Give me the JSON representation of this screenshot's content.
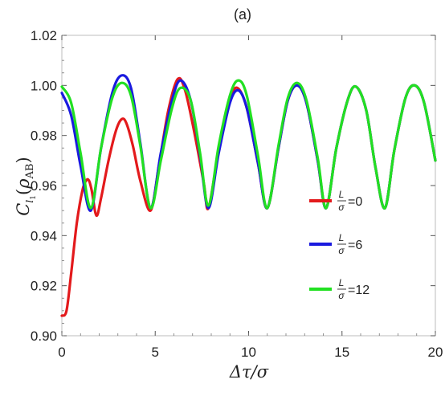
{
  "chart_data": {
    "type": "line",
    "title": "(a)",
    "xlabel": "Δτ/σ",
    "ylabel": "C_l1(ρ_AB)",
    "xlim": [
      0,
      20
    ],
    "ylim": [
      0.9,
      1.02
    ],
    "x_ticks": [
      "0",
      "5",
      "10",
      "15",
      "20"
    ],
    "y_ticks": [
      "0.90",
      "0.92",
      "0.94",
      "0.96",
      "0.98",
      "1.00",
      "1.02"
    ],
    "grid": false,
    "legend_position": "center-right",
    "series": [
      {
        "name_top": "L",
        "name_bottom": "σ",
        "name_value": "=0",
        "color": "#e31a1c",
        "points": [
          [
            0,
            0.908
          ],
          [
            0.25,
            0.91
          ],
          [
            0.5,
            0.925
          ],
          [
            0.8,
            0.945
          ],
          [
            1.1,
            0.958
          ],
          [
            1.3,
            0.962
          ],
          [
            1.45,
            0.962
          ],
          [
            1.6,
            0.958
          ],
          [
            1.85,
            0.948
          ],
          [
            2.1,
            0.955
          ],
          [
            2.5,
            0.97
          ],
          [
            2.9,
            0.982
          ],
          [
            3.2,
            0.9865
          ],
          [
            3.45,
            0.985
          ],
          [
            3.8,
            0.976
          ],
          [
            4.2,
            0.962
          ],
          [
            4.75,
            0.95
          ],
          [
            5.2,
            0.968
          ],
          [
            5.7,
            0.99
          ],
          [
            6.2,
            1.0025
          ],
          [
            6.6,
            0.998
          ],
          [
            7.1,
            0.981
          ],
          [
            7.6,
            0.961
          ],
          [
            7.85,
            0.951
          ],
          [
            8.4,
            0.974
          ],
          [
            9.0,
            0.994
          ],
          [
            9.4,
            0.999
          ],
          [
            9.9,
            0.991
          ],
          [
            10.5,
            0.969
          ],
          [
            11.0,
            0.951
          ],
          [
            11.6,
            0.975
          ],
          [
            12.1,
            0.994
          ],
          [
            12.6,
            1.0
          ],
          [
            13.1,
            0.993
          ],
          [
            13.7,
            0.97
          ],
          [
            14.15,
            0.951
          ],
          [
            14.7,
            0.975
          ],
          [
            15.3,
            0.994
          ],
          [
            15.75,
            0.9995
          ],
          [
            16.3,
            0.99
          ],
          [
            16.8,
            0.967
          ],
          [
            17.3,
            0.951
          ],
          [
            17.8,
            0.974
          ],
          [
            18.4,
            0.995
          ],
          [
            18.9,
            1.0
          ],
          [
            19.4,
            0.993
          ],
          [
            20.0,
            0.97
          ]
        ]
      },
      {
        "name_top": "L",
        "name_bottom": "σ",
        "name_value": "=6",
        "color": "#1a1adf",
        "points": [
          [
            0,
            0.997
          ],
          [
            0.5,
            0.988
          ],
          [
            1.0,
            0.968
          ],
          [
            1.55,
            0.95
          ],
          [
            2.1,
            0.975
          ],
          [
            2.7,
            0.997
          ],
          [
            3.2,
            1.004
          ],
          [
            3.7,
            0.999
          ],
          [
            4.2,
            0.977
          ],
          [
            4.75,
            0.951
          ],
          [
            5.3,
            0.973
          ],
          [
            5.9,
            0.994
          ],
          [
            6.35,
            1.002
          ],
          [
            6.9,
            0.994
          ],
          [
            7.4,
            0.972
          ],
          [
            7.85,
            0.951
          ],
          [
            8.4,
            0.973
          ],
          [
            9.0,
            0.993
          ],
          [
            9.45,
            0.998
          ],
          [
            9.9,
            0.991
          ],
          [
            10.5,
            0.969
          ],
          [
            11.0,
            0.951
          ],
          [
            11.6,
            0.975
          ],
          [
            12.1,
            0.994
          ],
          [
            12.6,
            1.0
          ],
          [
            13.1,
            0.993
          ],
          [
            13.7,
            0.97
          ],
          [
            14.15,
            0.951
          ],
          [
            14.7,
            0.975
          ],
          [
            15.3,
            0.994
          ],
          [
            15.75,
            0.9995
          ],
          [
            16.3,
            0.99
          ],
          [
            16.8,
            0.967
          ],
          [
            17.3,
            0.951
          ],
          [
            17.8,
            0.974
          ],
          [
            18.4,
            0.995
          ],
          [
            18.9,
            1.0
          ],
          [
            19.4,
            0.993
          ],
          [
            20.0,
            0.97
          ]
        ]
      },
      {
        "name_top": "L",
        "name_bottom": "σ",
        "name_value": "=12",
        "color": "#22e022",
        "points": [
          [
            0,
            0.9995
          ],
          [
            0.5,
            0.993
          ],
          [
            1.0,
            0.973
          ],
          [
            1.55,
            0.951
          ],
          [
            2.1,
            0.975
          ],
          [
            2.7,
            0.995
          ],
          [
            3.2,
            1.001
          ],
          [
            3.7,
            0.996
          ],
          [
            4.2,
            0.976
          ],
          [
            4.75,
            0.951
          ],
          [
            5.3,
            0.97
          ],
          [
            5.9,
            0.991
          ],
          [
            6.35,
            0.999
          ],
          [
            6.9,
            0.994
          ],
          [
            7.4,
            0.973
          ],
          [
            7.85,
            0.952
          ],
          [
            8.4,
            0.976
          ],
          [
            9.0,
            0.996
          ],
          [
            9.45,
            1.002
          ],
          [
            9.9,
            0.996
          ],
          [
            10.5,
            0.972
          ],
          [
            11.0,
            0.951
          ],
          [
            11.6,
            0.976
          ],
          [
            12.1,
            0.995
          ],
          [
            12.6,
            1.001
          ],
          [
            13.1,
            0.994
          ],
          [
            13.7,
            0.971
          ],
          [
            14.15,
            0.951
          ],
          [
            14.7,
            0.975
          ],
          [
            15.3,
            0.994
          ],
          [
            15.75,
            0.9995
          ],
          [
            16.3,
            0.99
          ],
          [
            16.8,
            0.967
          ],
          [
            17.3,
            0.951
          ],
          [
            17.8,
            0.974
          ],
          [
            18.4,
            0.995
          ],
          [
            18.9,
            1.0
          ],
          [
            19.4,
            0.993
          ],
          [
            20.0,
            0.97
          ]
        ]
      }
    ]
  }
}
